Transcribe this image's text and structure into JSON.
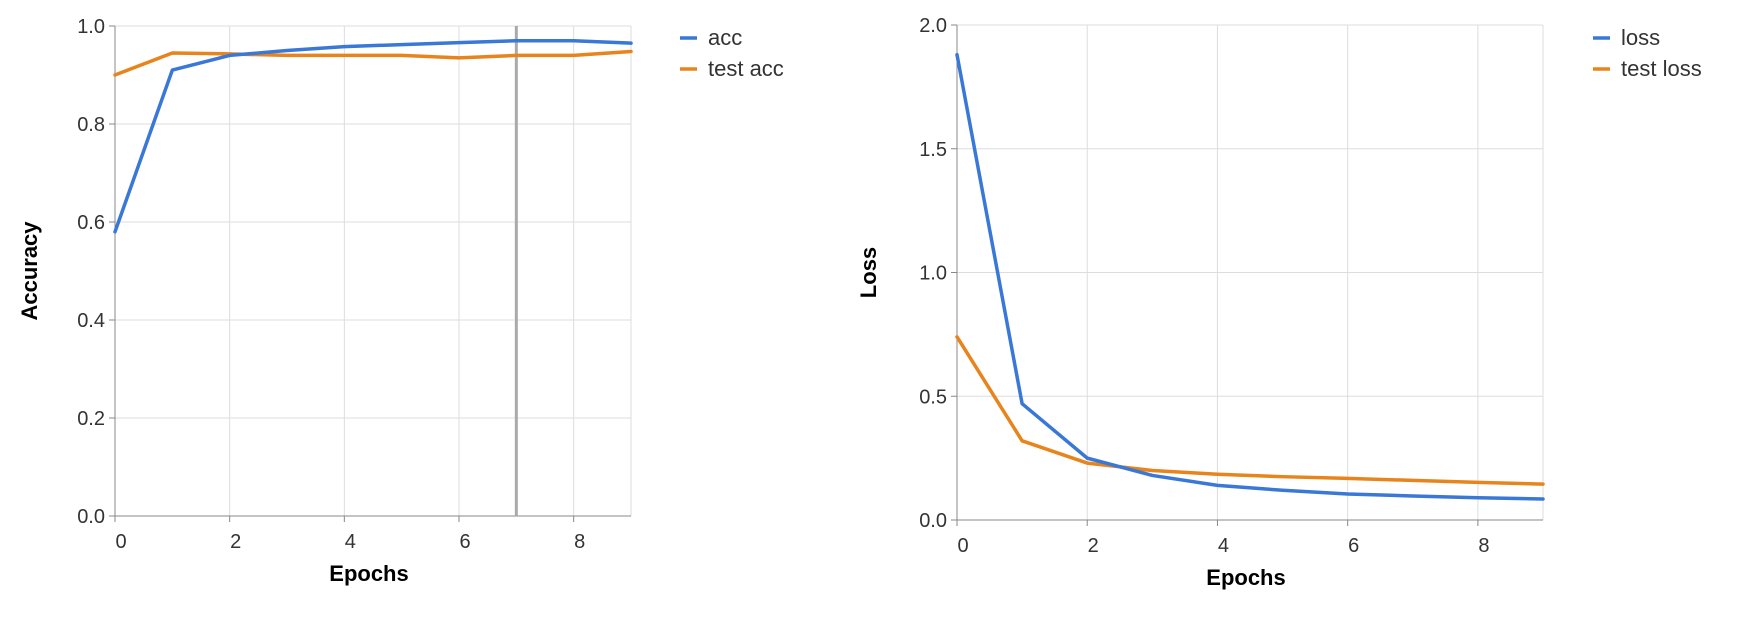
{
  "chart_data": [
    {
      "type": "line",
      "xlabel": "Epochs",
      "ylabel": "Accuracy",
      "xlim": [
        0,
        9
      ],
      "ylim": [
        0,
        1.0
      ],
      "xticks": [
        "0",
        "2",
        "4",
        "6",
        "8"
      ],
      "yticks": [
        "0.0",
        "0.2",
        "0.4",
        "0.6",
        "0.8",
        "1.0"
      ],
      "grid": true,
      "legend_position": "right",
      "hover_marker_x": 7,
      "x": [
        0,
        1,
        2,
        3,
        4,
        5,
        6,
        7,
        8,
        9
      ],
      "series": [
        {
          "name": "acc",
          "color": "#3a78d8",
          "values": [
            0.58,
            0.91,
            0.94,
            0.95,
            0.958,
            0.962,
            0.966,
            0.97,
            0.97,
            0.965
          ]
        },
        {
          "name": "test acc",
          "color": "#e8841c",
          "values": [
            0.9,
            0.945,
            0.943,
            0.94,
            0.94,
            0.94,
            0.935,
            0.94,
            0.94,
            0.948
          ]
        }
      ]
    },
    {
      "type": "line",
      "xlabel": "Epochs",
      "ylabel": "Loss",
      "xlim": [
        0,
        9
      ],
      "ylim": [
        0,
        2.0
      ],
      "xticks": [
        "0",
        "2",
        "4",
        "6",
        "8"
      ],
      "yticks": [
        "0.0",
        "0.5",
        "1.0",
        "1.5",
        "2.0"
      ],
      "grid": true,
      "legend_position": "right",
      "x": [
        0,
        1,
        2,
        3,
        4,
        5,
        6,
        7,
        8,
        9
      ],
      "series": [
        {
          "name": "loss",
          "color": "#3a78d8",
          "values": [
            1.88,
            0.47,
            0.25,
            0.18,
            0.14,
            0.12,
            0.105,
            0.097,
            0.09,
            0.085
          ]
        },
        {
          "name": "test loss",
          "color": "#e8841c",
          "values": [
            0.74,
            0.32,
            0.23,
            0.2,
            0.185,
            0.175,
            0.168,
            0.16,
            0.152,
            0.145
          ]
        }
      ]
    }
  ]
}
